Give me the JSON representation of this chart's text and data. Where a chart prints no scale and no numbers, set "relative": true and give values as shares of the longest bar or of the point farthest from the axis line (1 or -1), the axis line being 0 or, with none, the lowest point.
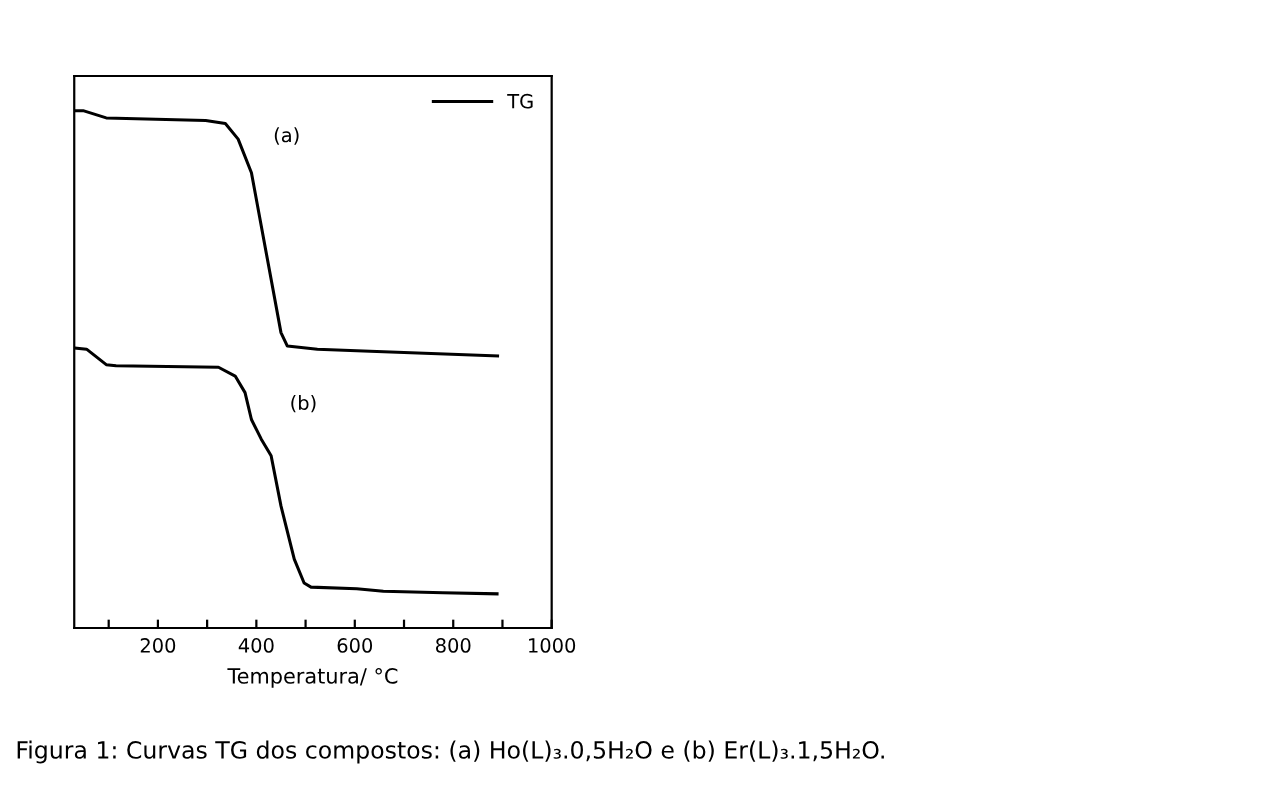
{
  "chart_data": {
    "type": "line",
    "relative": true,
    "xlabel": "Temperatura/ °C",
    "xlim": [
      30,
      1000
    ],
    "xticks": [
      {
        "value": 100,
        "label": null
      },
      200,
      {
        "value": 300,
        "label": null
      },
      400,
      {
        "value": 500,
        "label": null
      },
      600,
      {
        "value": 700,
        "label": null
      },
      800,
      {
        "value": 900,
        "label": null
      },
      1000
    ],
    "tick_labels": "x",
    "legend": "top right",
    "grid": false,
    "series": [
      {
        "name": "TG",
        "color": "#000000",
        "x": [
          30,
          48,
          95,
          297,
          337,
          363,
          390,
          430,
          450,
          463,
          524,
          631,
          890
        ],
        "values": [
          1.0,
          1.0,
          0.986,
          0.981,
          0.975,
          0.945,
          0.88,
          0.674,
          0.571,
          0.545,
          0.539,
          0.535,
          0.526
        ]
      },
      {
        "color": "#000000",
        "x": [
          31,
          55,
          95,
          115,
          323,
          357,
          377,
          390,
          410,
          430,
          450,
          477,
          497,
          511,
          604,
          658,
          779,
          889
        ],
        "values": [
          0.541,
          0.539,
          0.509,
          0.507,
          0.504,
          0.487,
          0.455,
          0.403,
          0.365,
          0.333,
          0.236,
          0.133,
          0.087,
          0.079,
          0.076,
          0.071,
          0.068,
          0.066
        ]
      }
    ],
    "annotations": [
      "(a)",
      "(b)",
      "Figura 1: Curvas TG dos compostos: (a) Ho(L)₃.0,5H₂O e (b) Er(L)₃.1,5H₂O."
    ]
  }
}
